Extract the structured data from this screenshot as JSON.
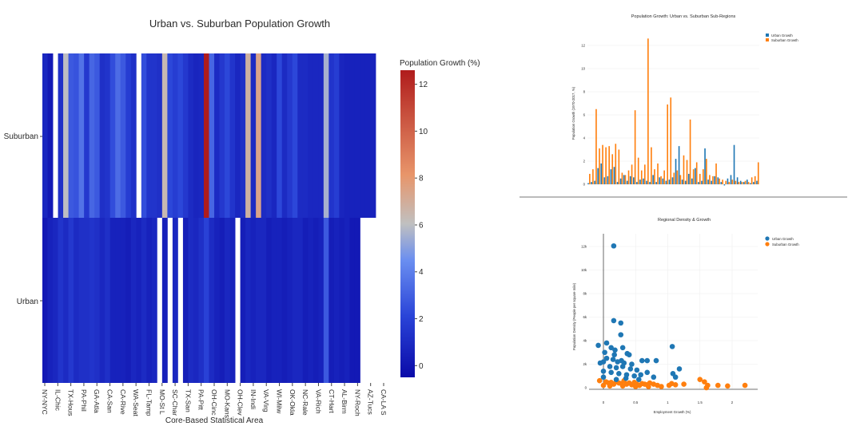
{
  "heatmap": {
    "title": "Urban vs. Suburban Population Growth",
    "xlabel": "Core-Based Statistical Area",
    "colorbar_title": "Population Growth (%)",
    "colorbar_ticks": [
      "0",
      "2",
      "4",
      "6",
      "8",
      "10",
      "12"
    ],
    "rows": [
      "Suburban",
      "Urban"
    ],
    "x_tick_labels": [
      "NY-NYC",
      "IL-Chic",
      "TX-Hous",
      "PA-Phil",
      "GA-Atla",
      "CA-San",
      "CA-Rive",
      "WA-Seat",
      "FL-Tamp",
      "MO-St L",
      "SC-Char",
      "TX-San",
      "PA-Pitt",
      "OH-Cinc",
      "MO-Kans",
      "OH-Clev",
      "IN-Indi",
      "VA-Virg",
      "WI-Milw",
      "OK-Okla",
      "NC-Rale",
      "VA-Rich",
      "CT-Hart",
      "AL-Birm",
      "NY-Roch",
      "AZ-Tucs",
      "CA-LA S"
    ]
  },
  "bar_panel": {
    "title": "Population Growth: Urban vs. Suburban Sub-Regions",
    "ylabel": "Population Growth (1970-2017, %)",
    "y_ticks": [
      "0",
      "2",
      "4",
      "6",
      "8",
      "10",
      "12"
    ],
    "legend": [
      "Urban Growth",
      "Suburban Growth"
    ]
  },
  "scatter_panel": {
    "title": "Regional Density & Growth",
    "xlabel": "Employment Growth (%)",
    "ylabel": "Population Density (People per square mile)",
    "x_ticks": [
      "0",
      "0.5",
      "1",
      "1.5",
      "2"
    ],
    "y_ticks": [
      "0",
      "2k",
      "4k",
      "6k",
      "8k",
      "10k",
      "12k"
    ],
    "legend": [
      "Urban Growth",
      "Suburban Growth"
    ]
  },
  "colors": {
    "urban": "#1f77b4",
    "suburban": "#ff7f0e",
    "colorscale": [
      "#0a0aa8",
      "#2a44d8",
      "#6a8ef0",
      "#c0c0c0",
      "#e8956a",
      "#b01c1c"
    ]
  },
  "chart_data": [
    {
      "type": "heatmap",
      "title": "Urban vs. Suburban Population Growth",
      "xlabel": "Core-Based Statistical Area",
      "rows": [
        "Suburban",
        "Urban"
      ],
      "zlim": [
        -0.5,
        12.6
      ],
      "suburban": [
        0.8,
        0.2,
        null,
        1.2,
        6,
        2.8,
        2.6,
        3.6,
        1.6,
        3.2,
        2.8,
        1.2,
        1.4,
        2.4,
        3.4,
        2.8,
        1.8,
        1.2,
        null,
        2.4,
        1.4,
        1.4,
        1.2,
        6.4,
        2.2,
        1.8,
        2.2,
        1.6,
        1.0,
        0.7,
        0.8,
        12.6,
        3.2,
        1.0,
        1.6,
        2.2,
        1.4,
        0.8,
        1.2,
        6.8,
        1.0,
        7.4,
        1.0,
        1.2,
        0.8,
        2.2,
        1.0,
        1.6,
        2.2,
        1.0,
        1.0,
        0.8,
        0.8,
        0.8,
        5.6,
        1.4,
        1.8,
        0.7,
        0.6,
        0.6,
        0.6,
        0.6,
        0.6,
        0.6
      ],
      "urban": [
        0.2,
        0.6,
        0.8,
        1.4,
        1.0,
        1.6,
        1.0,
        1.2,
        1.2,
        1.4,
        1.2,
        0.8,
        1.2,
        0.6,
        0.6,
        0.6,
        0.4,
        0.8,
        0.6,
        1.0,
        0.6,
        0.8,
        null,
        0.5,
        null,
        0.8,
        null,
        0.4,
        1.0,
        0.8,
        1.2,
        2.0,
        1.0,
        0.6,
        0.4,
        0.8,
        0.6,
        null,
        0.4,
        0.8,
        0.6,
        0.8,
        0.8,
        0.4,
        0.6,
        0.6,
        0.4,
        0.6,
        0.8,
        0.8,
        0.4,
        0.6,
        0.4,
        0.6,
        2.8,
        0.4,
        0.6,
        0.4,
        0.6,
        0.2,
        0.2,
        null,
        null,
        null
      ]
    },
    {
      "type": "bar",
      "title": "Population Growth: Urban vs. Suburban Sub-Regions",
      "ylabel": "Population Growth (1970-2017, %)",
      "ylim": [
        -0.3,
        12.8
      ],
      "series": [
        {
          "name": "Urban Growth",
          "values": [
            0.1,
            0.2,
            0.3,
            1.4,
            1.8,
            0.6,
            0.7,
            1.3,
            1.5,
            0.2,
            0.5,
            0.8,
            0.3,
            0.7,
            0.6,
            0.2,
            0.4,
            0.5,
            0.3,
            0.2,
            0.8,
            0.2,
            0.6,
            0.5,
            0.3,
            0.4,
            0.6,
            2.2,
            3.3,
            0.4,
            0.3,
            0.9,
            0.5,
            1.4,
            0.2,
            0.3,
            3.1,
            0.4,
            0.3,
            0.7,
            0.6,
            0.2,
            -0.1,
            0.5,
            0.8,
            3.4,
            0.6,
            0.3,
            0.2,
            0.4,
            0.1,
            0.2,
            0.3
          ]
        },
        {
          "name": "Suburban Growth",
          "values": [
            0.9,
            1.3,
            6.5,
            3.1,
            3.4,
            3.2,
            3.3,
            2.6,
            3.5,
            3.0,
            1.0,
            0.8,
            1.2,
            1.7,
            6.4,
            2.3,
            1.2,
            1.7,
            12.6,
            3.2,
            1.3,
            1.8,
            0.7,
            1.2,
            6.9,
            7.5,
            1.0,
            1.2,
            0.8,
            2.5,
            2.1,
            5.6,
            1.3,
            1.9,
            0.9,
            1.3,
            2.2,
            0.8,
            0.7,
            1.8,
            0.5,
            0.4,
            0.3,
            0.2,
            0.4,
            0.3,
            0.2,
            0.2,
            0.3,
            0.2,
            0.6,
            0.7,
            1.9
          ]
        }
      ],
      "legend": "top-right"
    },
    {
      "type": "scatter",
      "title": "Regional Density & Growth",
      "xlabel": "Employment Growth (%)",
      "ylabel": "Population Density (People per square mile)",
      "xlim": [
        -0.3,
        2.4
      ],
      "ylim": [
        -200,
        12600
      ],
      "series": [
        {
          "name": "Urban Growth",
          "points": [
            [
              0.16,
              12050
            ],
            [
              0.16,
              5700
            ],
            [
              0.27,
              5500
            ],
            [
              0.27,
              4500
            ],
            [
              -0.08,
              3600
            ],
            [
              0.05,
              3800
            ],
            [
              0.02,
              3000
            ],
            [
              0.12,
              3400
            ],
            [
              0.17,
              2800
            ],
            [
              0.18,
              3200
            ],
            [
              0.3,
              3400
            ],
            [
              0.37,
              2900
            ],
            [
              0.4,
              2800
            ],
            [
              1.07,
              3500
            ],
            [
              0.68,
              2300
            ],
            [
              0.82,
              2300
            ],
            [
              0.6,
              2300
            ],
            [
              0.15,
              2400
            ],
            [
              0.05,
              2500
            ],
            [
              0.0,
              2200
            ],
            [
              -0.05,
              2100
            ],
            [
              0.22,
              2200
            ],
            [
              0.28,
              2300
            ],
            [
              0.32,
              2100
            ],
            [
              0.44,
              2000
            ],
            [
              0.1,
              1800
            ],
            [
              0.2,
              1700
            ],
            [
              0.3,
              1800
            ],
            [
              0.42,
              1600
            ],
            [
              0.52,
              1500
            ],
            [
              1.18,
              1600
            ],
            [
              0.0,
              1400
            ],
            [
              0.12,
              1300
            ],
            [
              0.24,
              1200
            ],
            [
              0.36,
              1100
            ],
            [
              0.48,
              1000
            ],
            [
              1.08,
              1200
            ],
            [
              0.68,
              1300
            ],
            [
              0.58,
              1100
            ],
            [
              0.0,
              900
            ],
            [
              0.35,
              800
            ],
            [
              0.55,
              700
            ],
            [
              1.12,
              900
            ],
            [
              0.2,
              700
            ],
            [
              0.78,
              900
            ]
          ]
        },
        {
          "name": "Suburban Growth",
          "points": [
            [
              -0.06,
              600
            ],
            [
              0.04,
              500
            ],
            [
              0.08,
              400
            ],
            [
              0.12,
              450
            ],
            [
              0.16,
              300
            ],
            [
              0.2,
              500
            ],
            [
              0.24,
              400
            ],
            [
              0.28,
              350
            ],
            [
              0.32,
              600
            ],
            [
              0.36,
              300
            ],
            [
              0.4,
              400
            ],
            [
              0.44,
              250
            ],
            [
              0.48,
              450
            ],
            [
              0.52,
              300
            ],
            [
              0.56,
              200
            ],
            [
              0.6,
              350
            ],
            [
              0.64,
              300
            ],
            [
              0.68,
              250
            ],
            [
              0.72,
              400
            ],
            [
              0.78,
              300
            ],
            [
              0.84,
              200
            ],
            [
              0.9,
              100
            ],
            [
              1.02,
              200
            ],
            [
              1.06,
              350
            ],
            [
              1.12,
              250
            ],
            [
              1.25,
              300
            ],
            [
              1.5,
              700
            ],
            [
              1.57,
              500
            ],
            [
              1.62,
              200
            ],
            [
              1.6,
              0
            ],
            [
              1.78,
              200
            ],
            [
              1.93,
              150
            ],
            [
              2.2,
              200
            ],
            [
              0.1,
              150
            ],
            [
              0.3,
              150
            ],
            [
              0.5,
              100
            ],
            [
              0.7,
              100
            ],
            [
              0.0,
              200
            ]
          ]
        }
      ],
      "legend": "top-right"
    }
  ]
}
